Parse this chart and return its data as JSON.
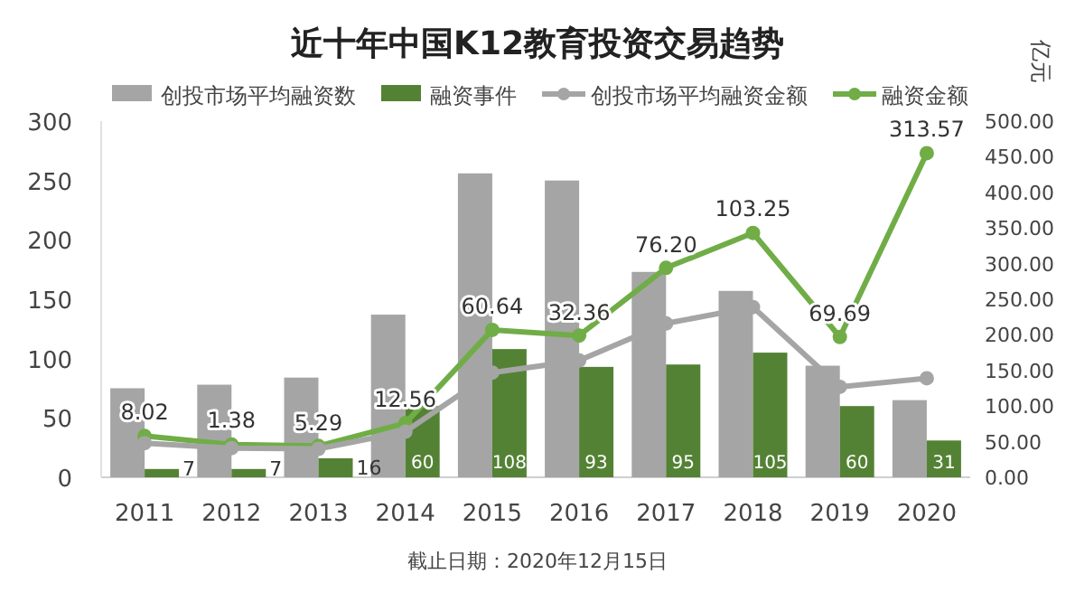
{
  "chart_data": {
    "type": "bar",
    "title": "近十年中国K12教育投资交易趋势",
    "categories": [
      "2011",
      "2012",
      "2013",
      "2014",
      "2015",
      "2016",
      "2017",
      "2018",
      "2019",
      "2020"
    ],
    "series": [
      {
        "name": "创投市场平均融资数",
        "color": "#a5a5a5",
        "values": [
          75,
          78,
          84,
          137,
          256,
          250,
          173,
          157,
          94,
          65
        ]
      },
      {
        "name": "融资事件",
        "color": "#548235",
        "values": [
          7,
          7,
          16,
          60,
          108,
          93,
          95,
          105,
          60,
          31
        ],
        "value_labels": [
          "7",
          "7",
          "16",
          "60",
          "108",
          "93",
          "95",
          "105",
          "60",
          "31"
        ]
      },
      {
        "name": "创投市场平均融资金额",
        "type": "line",
        "axis": "y2",
        "color": "#a5a5a5",
        "marker": "circle",
        "values": [
          48,
          41,
          40,
          64,
          147,
          164,
          216,
          239,
          127,
          139
        ]
      },
      {
        "name": "融资金额",
        "type": "line",
        "axis": "y2",
        "color": "#70ad47",
        "marker": "circle",
        "values": [
          58,
          46,
          44,
          76,
          207,
          199,
          294,
          343,
          197,
          455
        ]
      }
    ],
    "ylim": [
      0,
      300
    ],
    "yticks": [
      0,
      50,
      100,
      150,
      200,
      250,
      300
    ],
    "y2lim": [
      0,
      500
    ],
    "y2ticks": [
      {
        "value": 0,
        "label": "0.00"
      },
      {
        "value": 50,
        "label": "50.00"
      },
      {
        "value": 100,
        "label": "100.00"
      },
      {
        "value": 150,
        "label": "150.00"
      },
      {
        "value": 200,
        "label": "200.00"
      },
      {
        "value": 250,
        "label": "250.00"
      },
      {
        "value": 300,
        "label": "300.00"
      },
      {
        "value": 350,
        "label": "350.00"
      },
      {
        "value": 400,
        "label": "400.00"
      },
      {
        "value": 450,
        "label": "450.00"
      },
      {
        "value": 500,
        "label": "500.00"
      }
    ],
    "y2label": "亿元",
    "legend": "top",
    "grid": false,
    "annotations": [
      "截止日期：2020年12月15日",
      {
        "text": "8.02",
        "x": "2011",
        "y": 35
      },
      {
        "text": "1.38",
        "x": "2012",
        "y": 28
      },
      {
        "text": "5.29",
        "x": "2013",
        "y": 26
      },
      {
        "text": "12.56",
        "x": "2014",
        "y": 46
      },
      {
        "text": "60.64",
        "x": "2015",
        "y": 124
      },
      {
        "text": "32.36",
        "x": "2016",
        "y": 119
      },
      {
        "text": "76.20",
        "x": "2017",
        "y": 176
      },
      {
        "text": "103.25",
        "x": "2018",
        "y": 206
      },
      {
        "text": "69.69",
        "x": "2019",
        "y": 118
      },
      {
        "text": "313.57",
        "x": "2020",
        "y": 273
      }
    ]
  }
}
